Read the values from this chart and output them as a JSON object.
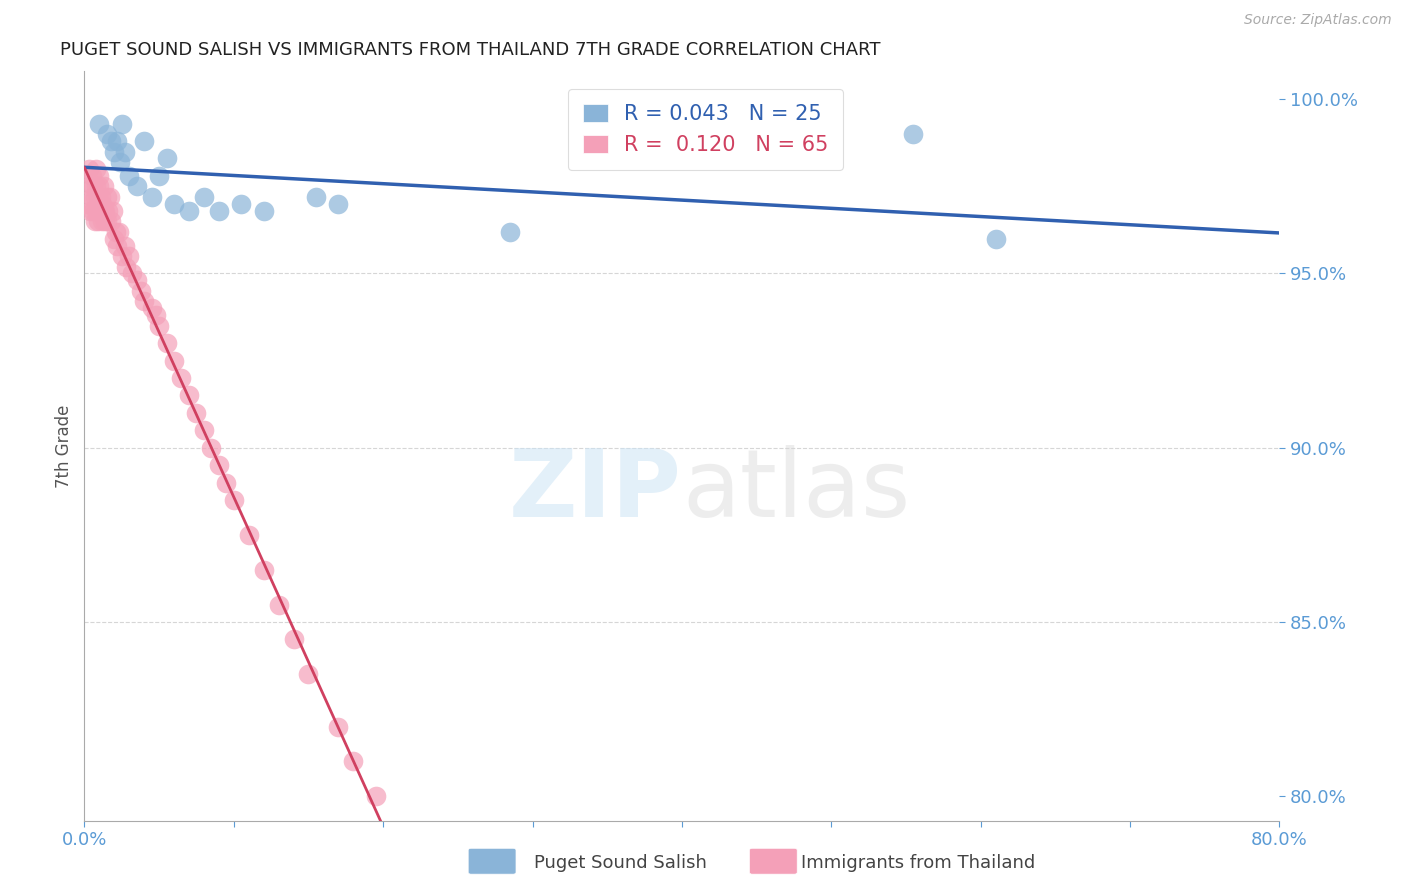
{
  "title": "PUGET SOUND SALISH VS IMMIGRANTS FROM THAILAND 7TH GRADE CORRELATION CHART",
  "source": "Source: ZipAtlas.com",
  "xlabel_legend_1": "Puget Sound Salish",
  "xlabel_legend_2": "Immigrants from Thailand",
  "ylabel": "7th Grade",
  "xlim": [
    0.0,
    0.8
  ],
  "ylim": [
    0.793,
    1.008
  ],
  "yticks": [
    0.8,
    0.85,
    0.9,
    0.95,
    1.0
  ],
  "ytick_labels": [
    "80.0%",
    "85.0%",
    "90.0%",
    "95.0%",
    "100.0%"
  ],
  "xticks": [
    0.0,
    0.1,
    0.2,
    0.3,
    0.4,
    0.5,
    0.6,
    0.7,
    0.8
  ],
  "r_blue": 0.043,
  "n_blue": 25,
  "r_pink": 0.12,
  "n_pink": 65,
  "blue_color": "#8ab4d8",
  "pink_color": "#f4a0b8",
  "blue_line_color": "#3060b0",
  "pink_line_color": "#d04060",
  "tick_color": "#5b9bd5",
  "grid_color": "#cccccc",
  "blue_x": [
    0.01,
    0.015,
    0.018,
    0.02,
    0.022,
    0.024,
    0.025,
    0.027,
    0.03,
    0.035,
    0.04,
    0.045,
    0.05,
    0.055,
    0.06,
    0.07,
    0.08,
    0.09,
    0.105,
    0.12,
    0.155,
    0.17,
    0.285,
    0.555,
    0.61
  ],
  "blue_y": [
    0.993,
    0.99,
    0.988,
    0.985,
    0.988,
    0.982,
    0.993,
    0.985,
    0.978,
    0.975,
    0.988,
    0.972,
    0.978,
    0.983,
    0.97,
    0.968,
    0.972,
    0.968,
    0.97,
    0.968,
    0.972,
    0.97,
    0.962,
    0.99,
    0.96
  ],
  "pink_x": [
    0.002,
    0.003,
    0.004,
    0.004,
    0.005,
    0.005,
    0.006,
    0.006,
    0.007,
    0.007,
    0.008,
    0.008,
    0.008,
    0.009,
    0.009,
    0.01,
    0.01,
    0.01,
    0.011,
    0.011,
    0.012,
    0.012,
    0.013,
    0.013,
    0.014,
    0.014,
    0.015,
    0.015,
    0.016,
    0.017,
    0.018,
    0.019,
    0.02,
    0.021,
    0.022,
    0.023,
    0.025,
    0.027,
    0.028,
    0.03,
    0.032,
    0.035,
    0.038,
    0.04,
    0.045,
    0.048,
    0.05,
    0.055,
    0.06,
    0.065,
    0.07,
    0.075,
    0.08,
    0.085,
    0.09,
    0.095,
    0.1,
    0.11,
    0.12,
    0.13,
    0.14,
    0.15,
    0.17,
    0.18,
    0.195
  ],
  "pink_y": [
    0.97,
    0.98,
    0.968,
    0.975,
    0.972,
    0.978,
    0.968,
    0.975,
    0.965,
    0.972,
    0.975,
    0.968,
    0.98,
    0.972,
    0.965,
    0.978,
    0.968,
    0.975,
    0.968,
    0.972,
    0.965,
    0.97,
    0.968,
    0.975,
    0.965,
    0.968,
    0.972,
    0.965,
    0.968,
    0.972,
    0.965,
    0.968,
    0.96,
    0.962,
    0.958,
    0.962,
    0.955,
    0.958,
    0.952,
    0.955,
    0.95,
    0.948,
    0.945,
    0.942,
    0.94,
    0.938,
    0.935,
    0.93,
    0.925,
    0.92,
    0.915,
    0.91,
    0.905,
    0.9,
    0.895,
    0.89,
    0.885,
    0.875,
    0.865,
    0.855,
    0.845,
    0.835,
    0.82,
    0.81,
    0.8
  ]
}
